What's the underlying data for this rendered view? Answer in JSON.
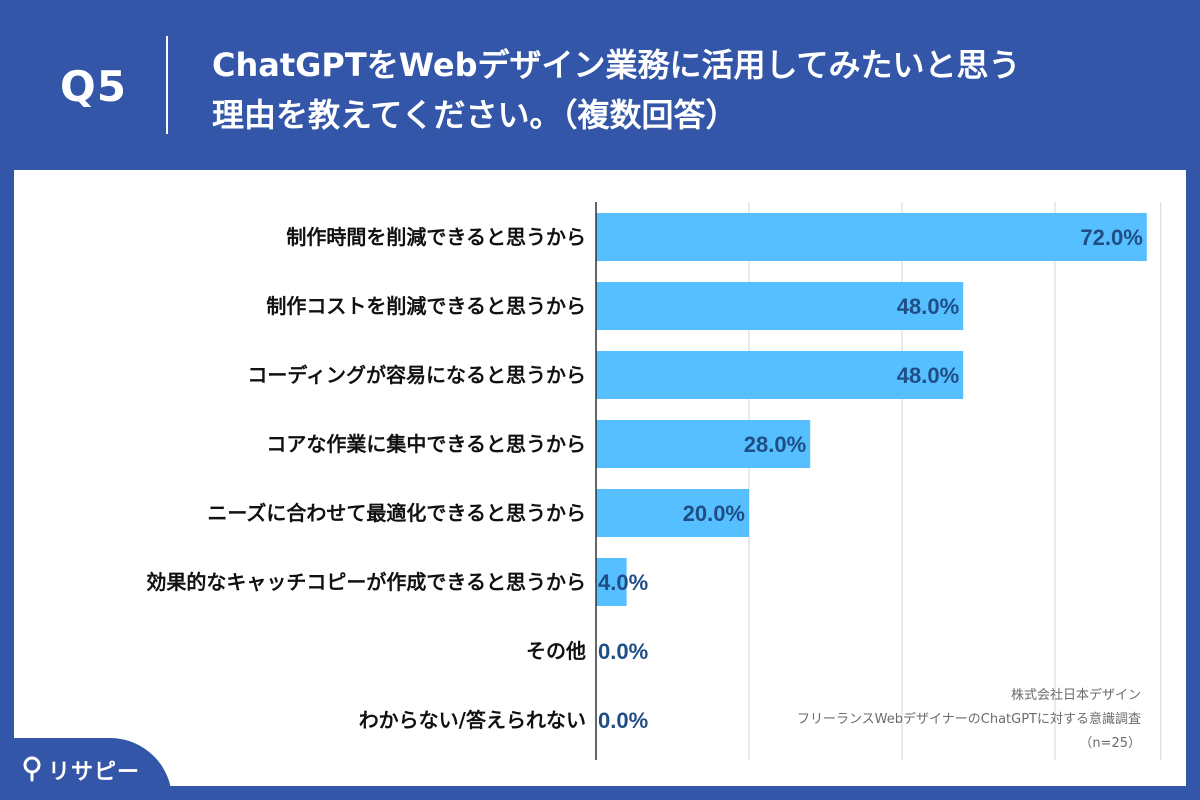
{
  "header": {
    "q_number": "Q5",
    "title_line1": "ChatGPTをWebデザイン業務に活用してみたいと思う",
    "title_line2": "理由を教えてください。（複数回答）"
  },
  "source": {
    "company": "株式会社日本デザイン",
    "survey": "フリーランスWebデザイナーのChatGPTに対する意識調査",
    "sample": "（n=25）"
  },
  "logo": {
    "text": "リサピー",
    "icon": "pin-icon"
  },
  "colors": {
    "background": "#3356a8",
    "bar": "#56bfff",
    "value_text": "#1f4e86",
    "grid": "#d4d4d4",
    "axis": "#333333"
  },
  "chart_data": {
    "type": "bar",
    "orientation": "horizontal",
    "categories": [
      "制作時間を削減できると思うから",
      "制作コストを削減できると思うから",
      "コーディングが容易になると思うから",
      "コアな作業に集中できると思うから",
      "ニーズに合わせて最適化できると思うから",
      "効果的なキャッチコピーが作成できると思うから",
      "その他",
      "わからない/答えられない"
    ],
    "values": [
      72.0,
      48.0,
      48.0,
      28.0,
      20.0,
      4.0,
      0.0,
      0.0
    ],
    "value_labels": [
      "72.0%",
      "48.0%",
      "48.0%",
      "28.0%",
      "20.0%",
      "4.0%",
      "0.0%",
      "0.0%"
    ],
    "xlim": [
      0,
      72
    ],
    "gridlines": [
      20,
      40,
      60
    ],
    "grid": true,
    "legend": "none"
  }
}
